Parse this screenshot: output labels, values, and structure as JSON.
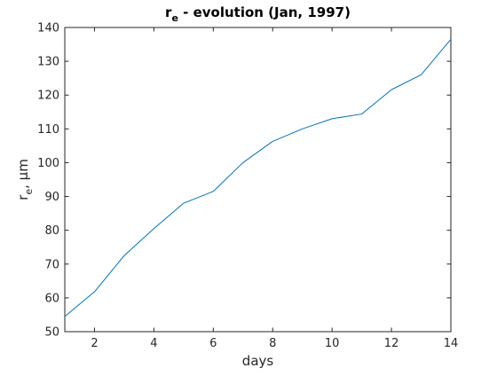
{
  "chart_data": {
    "type": "line",
    "title": {
      "main": "r",
      "subscript": "e",
      "rest": " - evolution (Jan, 1997)"
    },
    "xlabel": "days",
    "ylabel": {
      "main": "r",
      "subscript": "e",
      "rest": ", μm"
    },
    "xlim": [
      1,
      14
    ],
    "ylim": [
      50,
      140
    ],
    "xticks": [
      2,
      4,
      6,
      8,
      10,
      12,
      14
    ],
    "yticks": [
      50,
      60,
      70,
      80,
      90,
      100,
      110,
      120,
      130,
      140
    ],
    "grid": false,
    "legend": "none",
    "series": [
      {
        "color": "#0072BD",
        "x": [
          1,
          2,
          3,
          4,
          5,
          6,
          7,
          8,
          9,
          10,
          11,
          12,
          13,
          14
        ],
        "y": [
          54.5,
          61.8,
          72.5,
          80.5,
          88.0,
          91.5,
          100.0,
          106.3,
          110.0,
          113.0,
          114.4,
          121.6,
          126.0,
          136.5
        ]
      }
    ]
  }
}
